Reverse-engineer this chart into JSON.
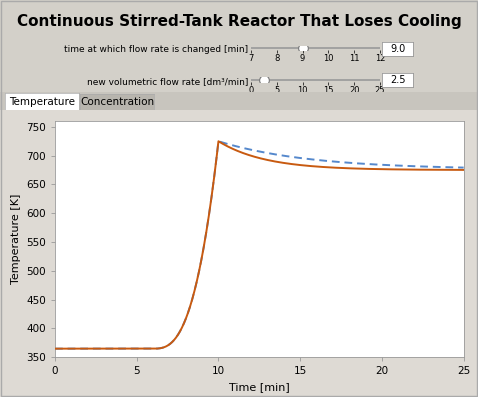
{
  "title": "Continuous Stirred-Tank Reactor That Loses Cooling",
  "title_fontsize": 11,
  "title_fontweight": "bold",
  "bg_color": "#d3d0c9",
  "plot_bg_color": "#ffffff",
  "plot_area_bg": "#e8e6e1",
  "tab_labels": [
    "Temperature",
    "Concentration"
  ],
  "slider1_label": "time at which flow rate is changed [min]",
  "slider1_ticks": [
    7,
    8,
    9,
    10,
    11,
    12
  ],
  "slider1_value": "9.0",
  "slider2_label": "new volumetric flow rate [dm³/min]",
  "slider2_ticks": [
    0,
    5,
    10,
    15,
    20,
    25
  ],
  "slider2_value": "2.5",
  "xlabel": "Time [min]",
  "ylabel": "Temperature [K]",
  "xlim": [
    0,
    25
  ],
  "ylim": [
    350,
    760
  ],
  "yticks": [
    350,
    400,
    450,
    500,
    550,
    600,
    650,
    700,
    750
  ],
  "xticks": [
    0,
    5,
    10,
    15,
    20,
    25
  ],
  "line1_color": "#c85a10",
  "line2_color": "#5588cc",
  "line_width": 1.4,
  "axis_label_fontsize": 8,
  "tick_fontsize": 7.5
}
